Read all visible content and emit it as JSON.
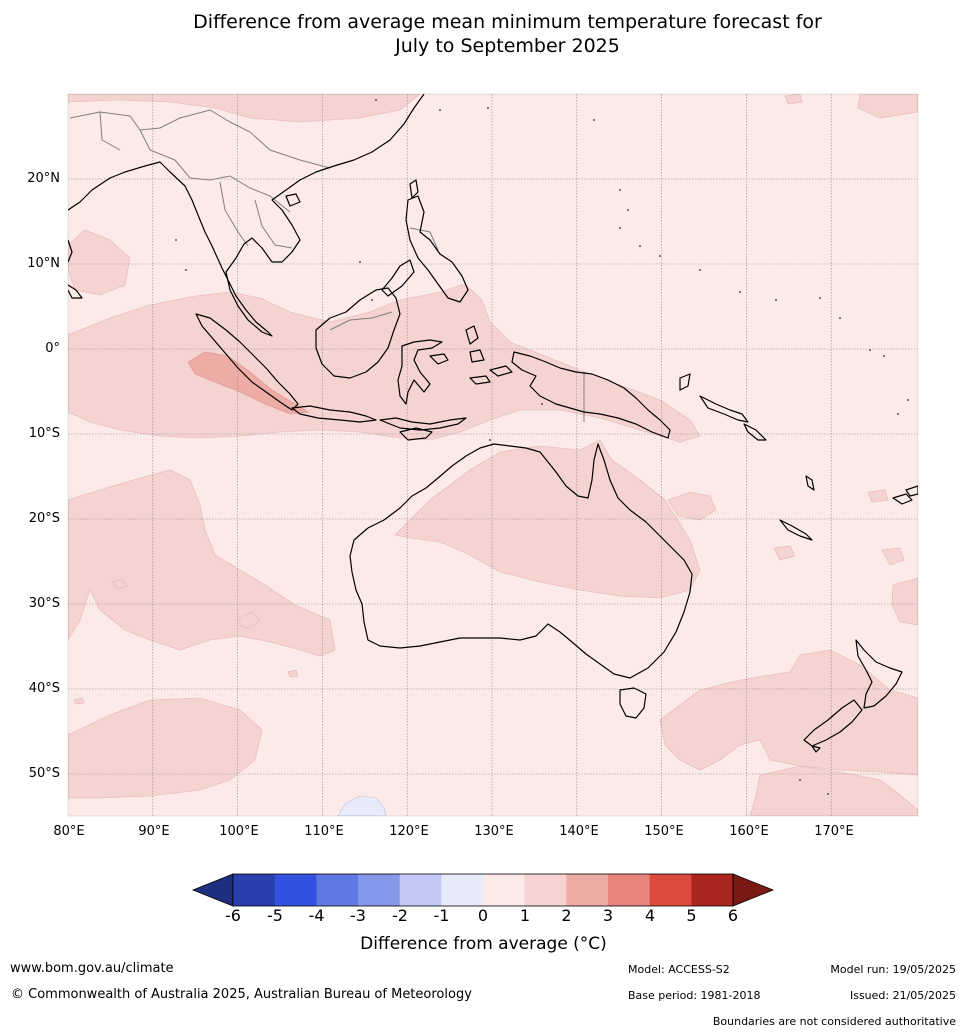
{
  "title": {
    "line1": "Difference from average mean minimum temperature forecast for",
    "line2": "July to September 2025"
  },
  "map": {
    "extent": {
      "lon_min": 80,
      "lon_max": 180,
      "lat_min": -55,
      "lat_max": 30
    },
    "lat_labels": [
      "20°N",
      "10°N",
      "0°",
      "10°S",
      "20°S",
      "30°S",
      "40°S",
      "50°S"
    ],
    "lat_values": [
      20,
      10,
      0,
      -10,
      -20,
      -30,
      -40,
      -50
    ],
    "lon_labels": [
      "80°E",
      "90°E",
      "100°E",
      "110°E",
      "120°E",
      "130°E",
      "140°E",
      "150°E",
      "160°E",
      "170°E"
    ],
    "lon_values": [
      80,
      90,
      100,
      110,
      120,
      130,
      140,
      150,
      160,
      170
    ],
    "background_anomaly": "0 to 1",
    "colors": {
      "0_to_1": "#fbeae8",
      "1_to_2": "#f4d3d0",
      "2_to_3": "#edaca6",
      "-1_to_0": "#e8ebfa",
      "coast": "#000000",
      "border": "#808080",
      "grid": "#999999"
    }
  },
  "colorbar": {
    "ticks": [
      "-6",
      "-5",
      "-4",
      "-3",
      "-2",
      "-1",
      "0",
      "1",
      "2",
      "3",
      "4",
      "5",
      "6"
    ],
    "colors": [
      "#1f2f7f",
      "#2a3fae",
      "#3253e0",
      "#5d77e3",
      "#8698ea",
      "#c0c8f3",
      "#e8ebfa",
      "#fbeae8",
      "#f4d3d0",
      "#edaca6",
      "#e8847c",
      "#db4a3d",
      "#a9271f",
      "#7a1a15"
    ],
    "label": "Difference from average (°C)"
  },
  "footer": {
    "website": "www.bom.gov.au/climate",
    "copyright": "© Commonwealth of Australia 2025, Australian Bureau of Meteorology",
    "model": "Model: ACCESS-S2",
    "base_period": "Base period: 1981-2018",
    "model_run": "Model run: 19/05/2025",
    "issued": "Issued: 21/05/2025",
    "disclaimer": "Boundaries are not considered authoritative"
  }
}
